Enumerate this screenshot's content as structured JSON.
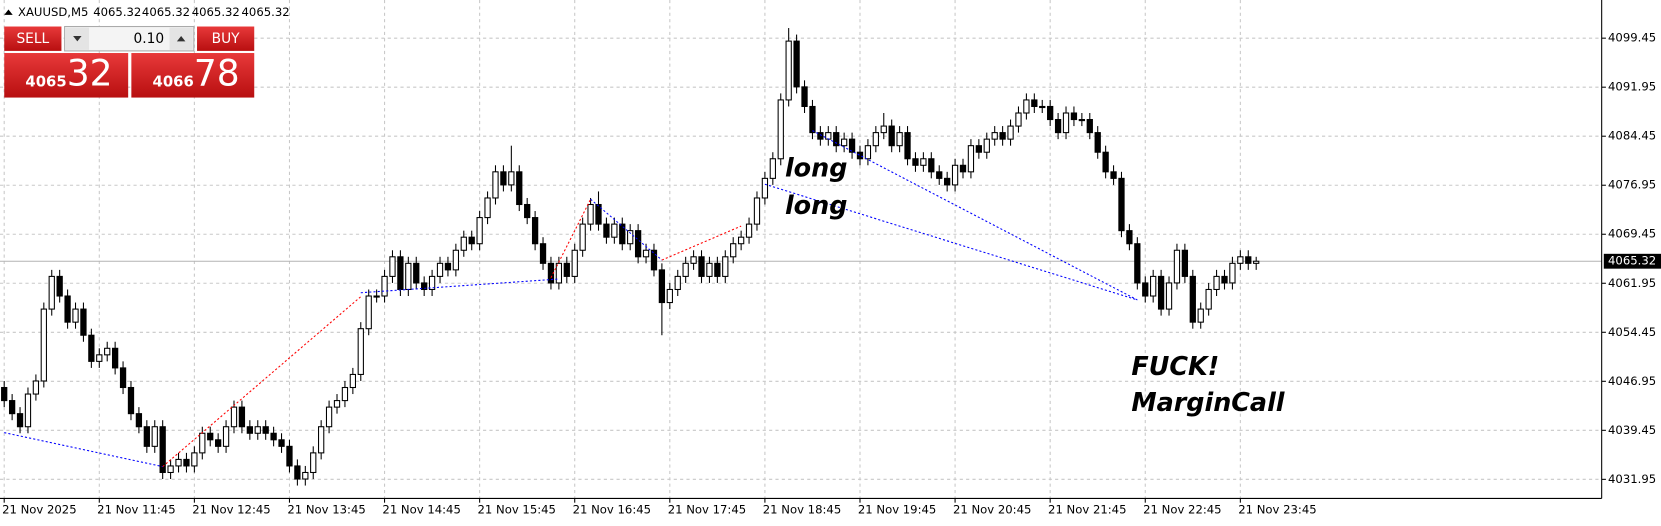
{
  "header": {
    "symbol": "XAUUSD,M5",
    "ohlc": [
      4065.32,
      4065.32,
      4065.32,
      4065.32
    ]
  },
  "trade_panel": {
    "sell": "SELL",
    "volume": "0.10",
    "buy": "BUY",
    "bid_main": "4065",
    "bid_pips": "32",
    "ask_main": "4066",
    "ask_pips": "78"
  },
  "chart_data": {
    "type": "candlestick",
    "ylim": [
      4029.03,
      4105.29
    ],
    "yticks": [
      4099.45,
      4091.95,
      4084.45,
      4076.95,
      4069.45,
      4061.95,
      4054.45,
      4046.95,
      4039.45,
      4031.95
    ],
    "xlim": [
      -0.53,
      201.6
    ],
    "xticks": [
      {
        "value": 0,
        "label": "21 Nov 2025"
      },
      {
        "value": 12,
        "label": "21 Nov 11:45"
      },
      {
        "value": 24,
        "label": "21 Nov 12:45"
      },
      {
        "value": 36,
        "label": "21 Nov 13:45"
      },
      {
        "value": 48,
        "label": "21 Nov 14:45"
      },
      {
        "value": 60,
        "label": "21 Nov 15:45"
      },
      {
        "value": 72,
        "label": "21 Nov 16:45"
      },
      {
        "value": 84,
        "label": "21 Nov 17:45"
      },
      {
        "value": 96,
        "label": "21 Nov 18:45"
      },
      {
        "value": 108,
        "label": "21 Nov 19:45"
      },
      {
        "value": 120,
        "label": "21 Nov 20:45"
      },
      {
        "value": 132,
        "label": "21 Nov 21:45"
      },
      {
        "value": 144,
        "label": "21 Nov 22:45"
      },
      {
        "value": 156,
        "label": "21 Nov 23:45"
      }
    ],
    "grid": true,
    "current_price": 4065.32,
    "up_color": "#ffffff",
    "down_color": "#000000",
    "ohlc": [
      [
        4046,
        4047,
        4043,
        4044
      ],
      [
        4044,
        4045,
        4041,
        4042
      ],
      [
        4042,
        4043,
        4039,
        4040
      ],
      [
        4040,
        4046,
        4039,
        4045
      ],
      [
        4045,
        4048,
        4044,
        4047
      ],
      [
        4047,
        4059,
        4046,
        4058
      ],
      [
        4058,
        4064,
        4057,
        4063
      ],
      [
        4063,
        4064,
        4059,
        4060
      ],
      [
        4060,
        4061,
        4055,
        4056
      ],
      [
        4056,
        4059,
        4055,
        4058
      ],
      [
        4058,
        4059,
        4053,
        4054
      ],
      [
        4054,
        4055,
        4049,
        4050
      ],
      [
        4050,
        4052,
        4049,
        4051
      ],
      [
        4051,
        4053,
        4050,
        4052
      ],
      [
        4052,
        4053,
        4048,
        4049
      ],
      [
        4049,
        4050,
        4045,
        4046
      ],
      [
        4046,
        4047,
        4041,
        4042
      ],
      [
        4042,
        4043,
        4039,
        4040
      ],
      [
        4040,
        4041,
        4036,
        4037
      ],
      [
        4037,
        4041,
        4036,
        4040
      ],
      [
        4040,
        4041,
        4032,
        4033
      ],
      [
        4033,
        4035,
        4032,
        4034
      ],
      [
        4034,
        4036,
        4033,
        4035
      ],
      [
        4035,
        4036,
        4033,
        4034
      ],
      [
        4034,
        4037,
        4033,
        4036
      ],
      [
        4036,
        4040,
        4035,
        4039
      ],
      [
        4039,
        4040,
        4037,
        4038
      ],
      [
        4038,
        4039,
        4036,
        4037
      ],
      [
        4037,
        4041,
        4036,
        4040
      ],
      [
        4040,
        4044,
        4039,
        4043
      ],
      [
        4043,
        4044,
        4039,
        4040
      ],
      [
        4040,
        4041,
        4038,
        4039
      ],
      [
        4039,
        4041,
        4038,
        4040
      ],
      [
        4040,
        4041,
        4038,
        4039
      ],
      [
        4039,
        4040,
        4037,
        4038
      ],
      [
        4038,
        4039,
        4036,
        4037
      ],
      [
        4037,
        4038,
        4033,
        4034
      ],
      [
        4034,
        4035,
        4031,
        4032
      ],
      [
        4032,
        4034,
        4031,
        4033
      ],
      [
        4033,
        4037,
        4032,
        4036
      ],
      [
        4036,
        4041,
        4035,
        4040
      ],
      [
        4040,
        4044,
        4039,
        4043
      ],
      [
        4043,
        4045,
        4042,
        4044
      ],
      [
        4044,
        4047,
        4043,
        4046
      ],
      [
        4046,
        4049,
        4045,
        4048
      ],
      [
        4048,
        4056,
        4047,
        4055
      ],
      [
        4055,
        4061,
        4054,
        4060
      ],
      [
        4060,
        4061,
        4059,
        4060
      ],
      [
        4060,
        4064,
        4059,
        4063
      ],
      [
        4063,
        4067,
        4062,
        4066
      ],
      [
        4066,
        4067,
        4060,
        4061
      ],
      [
        4061,
        4066,
        4060,
        4065
      ],
      [
        4065,
        4066,
        4061,
        4062
      ],
      [
        4062,
        4063,
        4060,
        4061
      ],
      [
        4061,
        4064,
        4060,
        4063
      ],
      [
        4063,
        4066,
        4062,
        4065
      ],
      [
        4065,
        4066,
        4063,
        4064
      ],
      [
        4064,
        4068,
        4063,
        4067
      ],
      [
        4067,
        4070,
        4066,
        4069
      ],
      [
        4069,
        4070,
        4067,
        4068
      ],
      [
        4068,
        4073,
        4067,
        4072
      ],
      [
        4072,
        4076,
        4071,
        4075
      ],
      [
        4075,
        4080,
        4074,
        4079
      ],
      [
        4079,
        4080,
        4076,
        4077
      ],
      [
        4077,
        4083,
        4076,
        4079
      ],
      [
        4079,
        4080,
        4073,
        4074
      ],
      [
        4074,
        4075,
        4071,
        4072
      ],
      [
        4072,
        4073,
        4067,
        4068
      ],
      [
        4068,
        4069,
        4064,
        4065
      ],
      [
        4065,
        4066,
        4061,
        4062
      ],
      [
        4062,
        4066,
        4061,
        4065
      ],
      [
        4065,
        4066,
        4062,
        4063
      ],
      [
        4063,
        4068,
        4062,
        4067
      ],
      [
        4067,
        4072,
        4066,
        4071
      ],
      [
        4071,
        4075,
        4070,
        4074
      ],
      [
        4074,
        4076,
        4070,
        4071
      ],
      [
        4071,
        4072,
        4068,
        4069
      ],
      [
        4069,
        4072,
        4068,
        4071
      ],
      [
        4071,
        4072,
        4067,
        4068
      ],
      [
        4068,
        4071,
        4067,
        4070
      ],
      [
        4070,
        4071,
        4065,
        4066
      ],
      [
        4066,
        4068,
        4065,
        4067
      ],
      [
        4067,
        4068,
        4063,
        4064
      ],
      [
        4064,
        4065,
        4054,
        4059
      ],
      [
        4059,
        4062,
        4058,
        4061
      ],
      [
        4061,
        4064,
        4060,
        4063
      ],
      [
        4063,
        4066,
        4062,
        4065
      ],
      [
        4065,
        4067,
        4064,
        4066
      ],
      [
        4066,
        4067,
        4062,
        4063
      ],
      [
        4063,
        4066,
        4062,
        4065
      ],
      [
        4065,
        4066,
        4062,
        4063
      ],
      [
        4063,
        4067,
        4062,
        4066
      ],
      [
        4066,
        4069,
        4065,
        4068
      ],
      [
        4068,
        4070,
        4067,
        4069
      ],
      [
        4069,
        4072,
        4068,
        4071
      ],
      [
        4071,
        4076,
        4070,
        4075
      ],
      [
        4075,
        4079,
        4074,
        4078
      ],
      [
        4078,
        4082,
        4077,
        4081
      ],
      [
        4081,
        4091,
        4080,
        4090
      ],
      [
        4090,
        4101,
        4089,
        4099
      ],
      [
        4099,
        4100,
        4091,
        4092
      ],
      [
        4092,
        4093,
        4088,
        4089
      ],
      [
        4089,
        4090,
        4084,
        4085
      ],
      [
        4085,
        4086,
        4083,
        4084
      ],
      [
        4084,
        4086,
        4083,
        4085
      ],
      [
        4085,
        4086,
        4082,
        4083
      ],
      [
        4083,
        4085,
        4082,
        4084
      ],
      [
        4084,
        4085,
        4081,
        4082
      ],
      [
        4082,
        4083,
        4080,
        4081
      ],
      [
        4081,
        4084,
        4080,
        4083
      ],
      [
        4083,
        4086,
        4082,
        4085
      ],
      [
        4085,
        4088,
        4084,
        4086
      ],
      [
        4086,
        4087,
        4082,
        4083
      ],
      [
        4083,
        4086,
        4082,
        4085
      ],
      [
        4085,
        4086,
        4080,
        4081
      ],
      [
        4081,
        4082,
        4079,
        4080
      ],
      [
        4080,
        4082,
        4079,
        4081
      ],
      [
        4081,
        4082,
        4078,
        4079
      ],
      [
        4079,
        4080,
        4077,
        4078
      ],
      [
        4078,
        4079,
        4076,
        4077
      ],
      [
        4077,
        4081,
        4076,
        4080
      ],
      [
        4080,
        4081,
        4078,
        4079
      ],
      [
        4079,
        4084,
        4078,
        4083
      ],
      [
        4083,
        4084,
        4081,
        4082
      ],
      [
        4082,
        4085,
        4081,
        4084
      ],
      [
        4084,
        4086,
        4083,
        4085
      ],
      [
        4085,
        4086,
        4083,
        4084
      ],
      [
        4084,
        4087,
        4083,
        4086
      ],
      [
        4086,
        4089,
        4085,
        4088
      ],
      [
        4088,
        4091,
        4087,
        4090
      ],
      [
        4090,
        4091,
        4088,
        4089
      ],
      [
        4089,
        4090,
        4088,
        4089
      ],
      [
        4089,
        4090,
        4086,
        4087
      ],
      [
        4087,
        4088,
        4084,
        4085
      ],
      [
        4085,
        4089,
        4084,
        4088
      ],
      [
        4088,
        4089,
        4086,
        4087
      ],
      [
        4087,
        4088,
        4086,
        4087
      ],
      [
        4087,
        4088,
        4084,
        4085
      ],
      [
        4085,
        4086,
        4081,
        4082
      ],
      [
        4082,
        4083,
        4078,
        4079
      ],
      [
        4079,
        4080,
        4077,
        4078
      ],
      [
        4078,
        4079,
        4069,
        4070
      ],
      [
        4070,
        4071,
        4067,
        4068
      ],
      [
        4068,
        4069,
        4061,
        4062
      ],
      [
        4062,
        4063,
        4059,
        4060
      ],
      [
        4060,
        4064,
        4059,
        4063
      ],
      [
        4063,
        4064,
        4057,
        4058
      ],
      [
        4058,
        4063,
        4057,
        4062
      ],
      [
        4062,
        4068,
        4061,
        4067
      ],
      [
        4067,
        4068,
        4062,
        4063
      ],
      [
        4063,
        4064,
        4055,
        4056
      ],
      [
        4056,
        4059,
        4055,
        4058
      ],
      [
        4058,
        4062,
        4057,
        4061
      ],
      [
        4061,
        4064,
        4060,
        4063
      ],
      [
        4063,
        4064,
        4061,
        4062
      ],
      [
        4062,
        4066,
        4061,
        4065
      ],
      [
        4065,
        4067,
        4064,
        4066
      ],
      [
        4066,
        4067,
        4064,
        4065
      ],
      [
        4065,
        4066,
        4064,
        4065.32
      ]
    ],
    "trades": [
      {
        "color": "#0000ff",
        "x": [
          0,
          20
        ],
        "y": [
          4039.1,
          4033.9
        ]
      },
      {
        "color": "#ff0000",
        "x": [
          20,
          45
        ],
        "y": [
          4033.9,
          4059.9
        ]
      },
      {
        "color": "#0000ff",
        "x": [
          45,
          70
        ],
        "y": [
          4060.5,
          4062.6
        ]
      },
      {
        "color": "#ff0000",
        "x": [
          69,
          74
        ],
        "y": [
          4062.8,
          4074.8
        ]
      },
      {
        "color": "#0000ff",
        "x": [
          74,
          83
        ],
        "y": [
          4074.8,
          4065.5
        ]
      },
      {
        "color": "#ff0000",
        "x": [
          83,
          93
        ],
        "y": [
          4065.5,
          4070.7
        ]
      },
      {
        "color": "#0000ff",
        "x": [
          96,
          143
        ],
        "y": [
          4077.1,
          4059.4
        ]
      },
      {
        "color": "#0000ff",
        "x": [
          102,
          143
        ],
        "y": [
          4085.3,
          4059.4
        ]
      }
    ],
    "annotations": [
      "long",
      "long",
      "FUCK!",
      "MarginCall"
    ]
  }
}
